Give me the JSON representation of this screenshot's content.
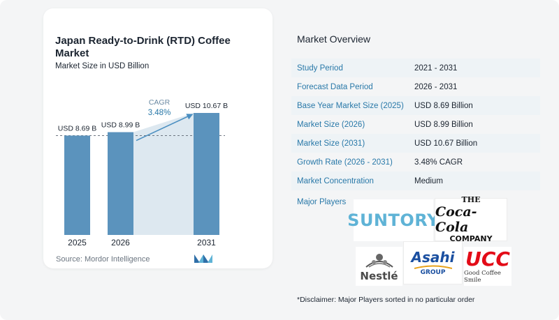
{
  "chart": {
    "title": "Japan Ready-to-Drink (RTD) Coffee Market",
    "subtitle": "Market Size in USD Billion",
    "source": "Source:  Mordor Intelligence",
    "cagr_label": "CAGR",
    "cagr_value": "3.48%"
  },
  "chart_data": {
    "type": "bar",
    "categories": [
      "2025",
      "2026",
      "2031"
    ],
    "values": [
      8.69,
      8.99,
      10.67
    ],
    "data_labels": [
      "USD 8.69 B",
      "USD 8.99 B",
      "USD 10.67 B"
    ],
    "ylim": [
      0,
      10.67
    ],
    "annotations": [
      "CAGR 3.48%"
    ],
    "colors": {
      "bar": "#5b93bd",
      "bar_edge": "#4b82ac",
      "shade": "#dde8f0",
      "arrow": "#4b8fc1"
    }
  },
  "overview": {
    "title": "Market Overview",
    "rows": [
      {
        "label": "Study Period",
        "value": "2021 - 2031"
      },
      {
        "label": "Forecast Data Period",
        "value": "2026 - 2031"
      },
      {
        "label": "Base Year Market Size (2025)",
        "value": "USD 8.69 Billion"
      },
      {
        "label": "Market Size (2026)",
        "value": "USD 8.99 Billion"
      },
      {
        "label": "Market Size (2031)",
        "value": "USD 10.67 Billion"
      },
      {
        "label": "Growth Rate (2026 - 2031)",
        "value": "3.48% CAGR"
      },
      {
        "label": "Market Concentration",
        "value": "Medium"
      }
    ],
    "players_label": "Major Players",
    "players": [
      "SUNTORY",
      "THE Coca-Cola COMPANY",
      "Nestlé",
      "Asahi GROUP",
      "UCC Good Coffee Smile"
    ],
    "disclaimer": "*Disclaimer: Major Players sorted in no particular order"
  },
  "logos": {
    "suntory": "SUNTORY",
    "coke_the": "THE",
    "coke_script": "Coca-Cola",
    "coke_company": "COMPANY",
    "nestle": "Nestlé",
    "asahi": "Asahi",
    "asahi_group": "GROUP",
    "ucc": "UCC",
    "ucc_tag": "Good Coffee Smile"
  },
  "colors": {
    "label_blue": "#2878a8",
    "row_shade": "#eef3f6",
    "suntory": "#5fb3d6",
    "coke_red": "#e21b23",
    "asahi_blue": "#1a4fa0",
    "ucc_red": "#e30b17"
  }
}
